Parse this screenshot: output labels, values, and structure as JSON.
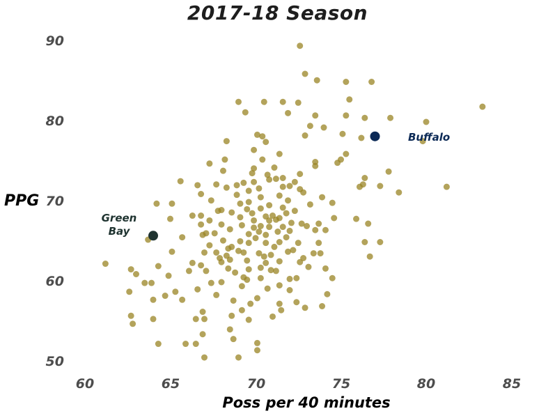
{
  "chart_data": {
    "type": "scatter",
    "title": "2017-18 Season",
    "xlabel": "Poss per 40 minutes",
    "ylabel": "PPG",
    "xlim": [
      59.5,
      86
    ],
    "ylim": [
      48.5,
      91
    ],
    "x_ticks": [
      60,
      65,
      70,
      75,
      80,
      85
    ],
    "y_ticks": [
      50,
      60,
      70,
      80,
      90
    ],
    "grid": false,
    "legend": null,
    "colors": {
      "default": "#9a8424",
      "green_bay": "#1f3330",
      "buffalo": "#0c2a56"
    },
    "highlights": [
      {
        "label": "Green Bay",
        "x": 64.0,
        "y": 65.8,
        "color": "#1f3330"
      },
      {
        "label": "Buffalo",
        "x": 77.0,
        "y": 78.2,
        "color": "#0c2a56"
      }
    ],
    "points": [
      [
        72.6,
        89.5
      ],
      [
        72.9,
        86.0
      ],
      [
        73.6,
        85.2
      ],
      [
        75.3,
        85.0
      ],
      [
        76.8,
        85.0
      ],
      [
        75.5,
        82.8
      ],
      [
        70.5,
        82.5
      ],
      [
        71.6,
        82.5
      ],
      [
        72.5,
        82.4
      ],
      [
        69.0,
        82.5
      ],
      [
        69.4,
        81.2
      ],
      [
        71.9,
        81.1
      ],
      [
        75.3,
        80.8
      ],
      [
        73.5,
        80.8
      ],
      [
        76.4,
        80.5
      ],
      [
        77.9,
        80.5
      ],
      [
        80.0,
        80.0
      ],
      [
        83.3,
        81.9
      ],
      [
        74.0,
        79.3
      ],
      [
        73.2,
        79.5
      ],
      [
        72.9,
        78.3
      ],
      [
        75.1,
        78.5
      ],
      [
        76.2,
        78.0
      ],
      [
        79.8,
        77.6
      ],
      [
        70.1,
        78.4
      ],
      [
        70.4,
        78.2
      ],
      [
        70.6,
        77.5
      ],
      [
        68.3,
        77.6
      ],
      [
        69.9,
        76.5
      ],
      [
        71.4,
        76.0
      ],
      [
        73.5,
        75.0
      ],
      [
        73.5,
        74.5
      ],
      [
        74.8,
        74.9
      ],
      [
        75.3,
        76.0
      ],
      [
        75.0,
        75.3
      ],
      [
        76.4,
        73.0
      ],
      [
        72.6,
        73.5
      ],
      [
        72.3,
        72.5
      ],
      [
        70.4,
        75.3
      ],
      [
        69.9,
        74.2
      ],
      [
        71.1,
        74.3
      ],
      [
        69.8,
        73.6
      ],
      [
        70.7,
        73.4
      ],
      [
        71.2,
        72.9
      ],
      [
        71.6,
        73.0
      ],
      [
        72.0,
        72.0
      ],
      [
        72.8,
        71.2
      ],
      [
        73.9,
        70.6
      ],
      [
        74.5,
        69.9
      ],
      [
        76.1,
        71.9
      ],
      [
        76.3,
        72.2
      ],
      [
        77.3,
        72.0
      ],
      [
        77.8,
        73.8
      ],
      [
        78.4,
        71.2
      ],
      [
        81.2,
        71.9
      ],
      [
        75.9,
        67.9
      ],
      [
        76.6,
        67.3
      ],
      [
        76.4,
        65.0
      ],
      [
        77.3,
        65.0
      ],
      [
        76.7,
        63.2
      ],
      [
        74.6,
        68.0
      ],
      [
        73.5,
        66.5
      ],
      [
        73.7,
        64.9
      ],
      [
        73.4,
        63.6
      ],
      [
        73.1,
        61.9
      ],
      [
        72.6,
        62.5
      ],
      [
        74.1,
        61.7
      ],
      [
        74.5,
        60.5
      ],
      [
        74.2,
        58.5
      ],
      [
        73.9,
        57.0
      ],
      [
        72.9,
        56.8
      ],
      [
        72.4,
        57.5
      ],
      [
        71.5,
        56.5
      ],
      [
        71.0,
        55.7
      ],
      [
        71.4,
        57.3
      ],
      [
        72.0,
        59.0
      ],
      [
        71.4,
        59.6
      ],
      [
        70.7,
        59.2
      ],
      [
        70.1,
        58.0
      ],
      [
        69.7,
        57.3
      ],
      [
        69.2,
        56.5
      ],
      [
        69.6,
        55.3
      ],
      [
        68.6,
        55.8
      ],
      [
        68.7,
        57.7
      ],
      [
        69.2,
        59.5
      ],
      [
        69.5,
        60.3
      ],
      [
        68.8,
        61.2
      ],
      [
        68.0,
        62.5
      ],
      [
        68.0,
        60.0
      ],
      [
        67.7,
        58.4
      ],
      [
        67.4,
        59.9
      ],
      [
        66.6,
        59.1
      ],
      [
        67.0,
        55.4
      ],
      [
        66.5,
        55.4
      ],
      [
        67.0,
        50.6
      ],
      [
        68.7,
        52.9
      ],
      [
        69.0,
        50.6
      ],
      [
        70.1,
        51.5
      ],
      [
        70.1,
        52.4
      ],
      [
        68.5,
        54.1
      ],
      [
        66.9,
        56.3
      ],
      [
        65.7,
        57.8
      ],
      [
        66.1,
        61.4
      ],
      [
        66.8,
        62.1
      ],
      [
        65.3,
        58.8
      ],
      [
        65.9,
        52.3
      ],
      [
        66.5,
        52.3
      ],
      [
        66.9,
        53.5
      ],
      [
        64.3,
        52.3
      ],
      [
        64.0,
        55.4
      ],
      [
        64.0,
        57.8
      ],
      [
        64.9,
        60.8
      ],
      [
        62.7,
        55.8
      ],
      [
        62.8,
        54.8
      ],
      [
        62.6,
        58.8
      ],
      [
        62.7,
        61.6
      ],
      [
        63.5,
        59.9
      ],
      [
        63.9,
        59.9
      ],
      [
        64.7,
        58.3
      ],
      [
        61.2,
        62.3
      ],
      [
        63.0,
        61.0
      ],
      [
        63.7,
        65.3
      ],
      [
        64.3,
        62.0
      ],
      [
        65.1,
        63.8
      ],
      [
        66.3,
        62.4
      ],
      [
        67.1,
        61.4
      ],
      [
        67.7,
        63.7
      ],
      [
        68.4,
        64.2
      ],
      [
        69.3,
        63.7
      ],
      [
        70.2,
        63.6
      ],
      [
        70.6,
        62.4
      ],
      [
        71.2,
        61.4
      ],
      [
        70.9,
        63.4
      ],
      [
        71.9,
        63.8
      ],
      [
        72.5,
        64.9
      ],
      [
        72.0,
        66.4
      ],
      [
        71.6,
        66.9
      ],
      [
        71.2,
        67.8
      ],
      [
        70.6,
        68.2
      ],
      [
        70.3,
        67.0
      ],
      [
        69.6,
        66.0
      ],
      [
        69.1,
        65.1
      ],
      [
        68.6,
        64.4
      ],
      [
        68.1,
        65.2
      ],
      [
        67.6,
        66.1
      ],
      [
        67.1,
        66.1
      ],
      [
        66.8,
        68.3
      ],
      [
        66.3,
        68.3
      ],
      [
        65.7,
        65.6
      ],
      [
        65.0,
        67.9
      ],
      [
        65.1,
        69.8
      ],
      [
        64.2,
        69.8
      ],
      [
        65.6,
        72.6
      ],
      [
        66.8,
        71.0
      ],
      [
        67.4,
        70.2
      ],
      [
        67.8,
        68.9
      ],
      [
        68.3,
        71.8
      ],
      [
        68.9,
        72.1
      ],
      [
        69.3,
        72.4
      ],
      [
        69.6,
        71.4
      ],
      [
        69.9,
        72.5
      ],
      [
        70.2,
        71.7
      ],
      [
        70.3,
        70.6
      ],
      [
        69.6,
        70.0
      ],
      [
        69.1,
        69.8
      ],
      [
        68.6,
        68.7
      ],
      [
        69.1,
        68.1
      ],
      [
        69.9,
        67.7
      ],
      [
        70.8,
        66.9
      ],
      [
        71.3,
        66.3
      ],
      [
        71.4,
        65.0
      ],
      [
        70.6,
        64.9
      ],
      [
        70.2,
        66.3
      ],
      [
        69.9,
        66.8
      ],
      [
        69.2,
        67.1
      ],
      [
        68.5,
        66.6
      ],
      [
        68.0,
        67.2
      ],
      [
        67.3,
        67.7
      ],
      [
        66.8,
        67.2
      ],
      [
        67.0,
        63.7
      ],
      [
        67.9,
        63.0
      ],
      [
        68.5,
        62.8
      ],
      [
        69.5,
        62.7
      ],
      [
        69.6,
        61.6
      ],
      [
        70.3,
        61.8
      ],
      [
        70.9,
        61.5
      ],
      [
        71.4,
        62.6
      ],
      [
        72.0,
        60.4
      ],
      [
        72.4,
        60.5
      ],
      [
        70.3,
        60.5
      ],
      [
        69.3,
        60.6
      ],
      [
        68.4,
        61.7
      ],
      [
        67.3,
        64.6
      ],
      [
        66.9,
        65.9
      ],
      [
        68.0,
        69.0
      ],
      [
        71.8,
        68.6
      ],
      [
        72.3,
        68.9
      ],
      [
        72.7,
        67.3
      ],
      [
        73.0,
        67.0
      ],
      [
        73.7,
        67.3
      ],
      [
        74.1,
        66.5
      ],
      [
        73.2,
        69.7
      ],
      [
        72.6,
        71.6
      ],
      [
        71.6,
        71.9
      ],
      [
        70.8,
        72.8
      ],
      [
        71.4,
        70.8
      ],
      [
        71.9,
        70.2
      ],
      [
        70.8,
        69.6
      ],
      [
        70.3,
        69.2
      ],
      [
        71.0,
        68.3
      ],
      [
        72.1,
        67.4
      ],
      [
        71.4,
        68.0
      ],
      [
        69.0,
        63.9
      ],
      [
        68.3,
        63.3
      ],
      [
        69.6,
        64.9
      ],
      [
        70.0,
        65.5
      ],
      [
        70.5,
        63.2
      ],
      [
        71.1,
        64.4
      ],
      [
        72.2,
        64.0
      ],
      [
        72.8,
        63.0
      ],
      [
        73.8,
        63.6
      ],
      [
        69.8,
        68.6
      ],
      [
        70.6,
        65.9
      ],
      [
        71.8,
        65.6
      ],
      [
        68.9,
        70.9
      ],
      [
        69.5,
        69.1
      ],
      [
        70.8,
        67.7
      ],
      [
        71.6,
        69.3
      ],
      [
        66.6,
        72.1
      ],
      [
        67.3,
        74.8
      ],
      [
        68.2,
        75.3
      ],
      [
        68.1,
        73.9
      ],
      [
        67.7,
        72.2
      ],
      [
        64.0,
        65.8
      ],
      [
        77.0,
        78.2
      ]
    ]
  }
}
